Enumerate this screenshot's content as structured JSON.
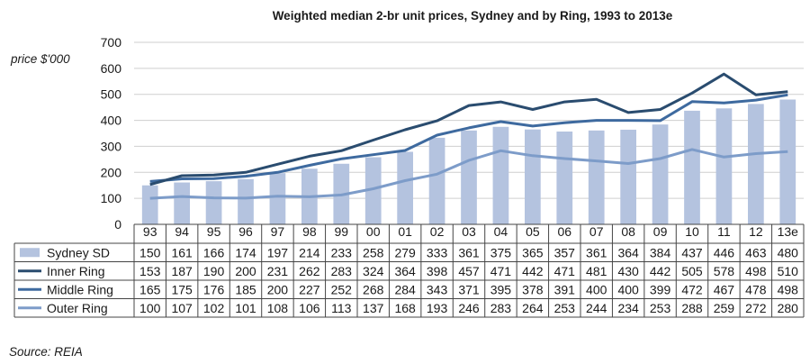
{
  "chart_data": {
    "type": "bar+line",
    "title": "Weighted median 2-br unit prices, Sydney and by Ring, 1993 to 2013e",
    "ylabel": "price $'000",
    "xlabel": "",
    "ylim": [
      0,
      700
    ],
    "yticks": [
      0,
      100,
      200,
      300,
      400,
      500,
      600,
      700
    ],
    "grid": true,
    "legend": "data-table",
    "categories": [
      "93",
      "94",
      "95",
      "96",
      "97",
      "98",
      "99",
      "00",
      "01",
      "02",
      "03",
      "04",
      "05",
      "06",
      "07",
      "08",
      "09",
      "10",
      "11",
      "12",
      "13e"
    ],
    "series": [
      {
        "name": "Sydney SD",
        "kind": "bar",
        "color": "#b4c3df",
        "values": [
          150,
          161,
          166,
          174,
          197,
          214,
          233,
          258,
          279,
          333,
          361,
          375,
          365,
          357,
          361,
          364,
          384,
          437,
          446,
          463,
          480
        ]
      },
      {
        "name": "Inner Ring",
        "kind": "line",
        "color": "#2a4c6f",
        "values": [
          153,
          187,
          190,
          200,
          231,
          262,
          283,
          324,
          364,
          398,
          457,
          471,
          442,
          471,
          481,
          430,
          442,
          505,
          578,
          498,
          510
        ]
      },
      {
        "name": "Middle Ring",
        "kind": "line",
        "color": "#3e6a9f",
        "values": [
          165,
          175,
          176,
          185,
          200,
          227,
          252,
          268,
          284,
          343,
          371,
          395,
          378,
          391,
          400,
          400,
          399,
          472,
          467,
          478,
          498
        ]
      },
      {
        "name": "Outer Ring",
        "kind": "line",
        "color": "#7d9cc9",
        "values": [
          100,
          107,
          102,
          101,
          108,
          106,
          113,
          137,
          168,
          193,
          246,
          283,
          264,
          253,
          244,
          234,
          253,
          288,
          259,
          272,
          280
        ]
      }
    ]
  },
  "source": "Source:  REIA"
}
